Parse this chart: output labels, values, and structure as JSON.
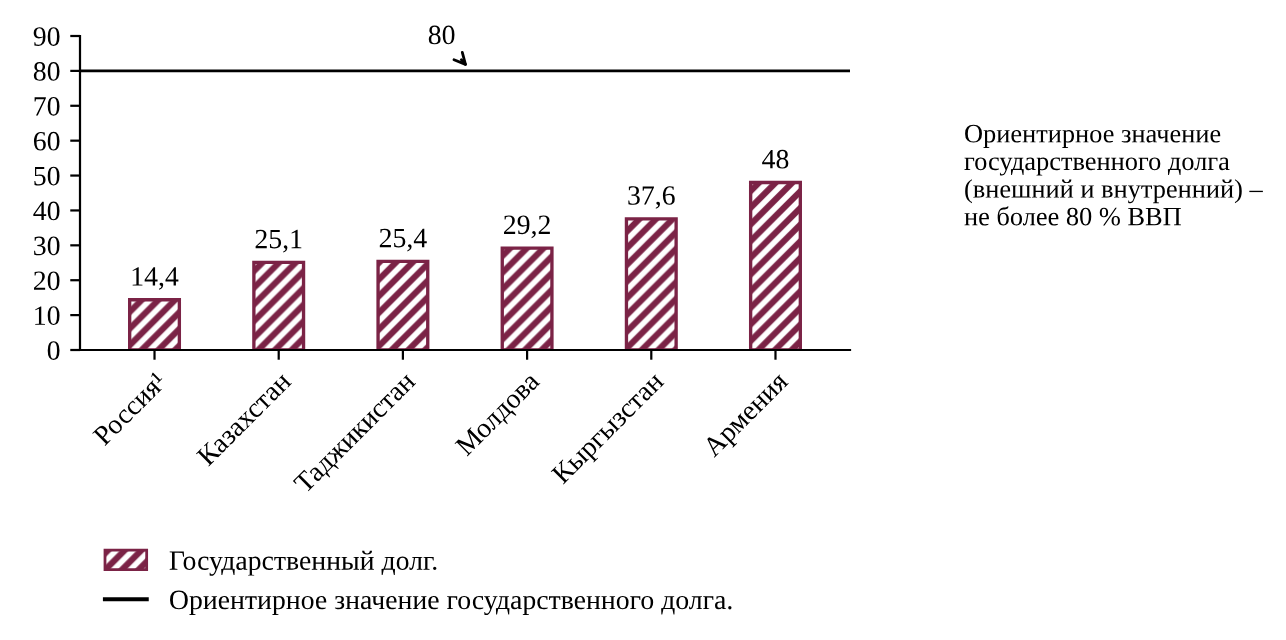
{
  "chart_data": {
    "type": "bar",
    "categories": [
      "Россия¹",
      "Казахстан",
      "Таджикистан",
      "Молдова",
      "Кыргызстан",
      "Армения"
    ],
    "series": [
      {
        "name": "Государственный долг.",
        "color": "#7b2346",
        "values": [
          14.4,
          25.1,
          25.4,
          29.2,
          37.6,
          48
        ],
        "value_labels": [
          "14,4",
          "25,1",
          "25,4",
          "29,2",
          "37,6",
          "48"
        ]
      }
    ],
    "ylim": [
      0,
      90
    ],
    "yticks": [
      0,
      10,
      20,
      30,
      40,
      50,
      60,
      70,
      80,
      90
    ],
    "ref_lines": [
      {
        "axis": "y",
        "value": 80,
        "label": "Ориентирное значение государственного долга.",
        "color": "#000000",
        "line_style": "solid"
      }
    ],
    "annotations": [
      "80",
      "Ориентирное значение государственного долга (внешний и внутренний) – не более 80 % ВВП"
    ],
    "grid": false,
    "legend": "bottom left"
  }
}
